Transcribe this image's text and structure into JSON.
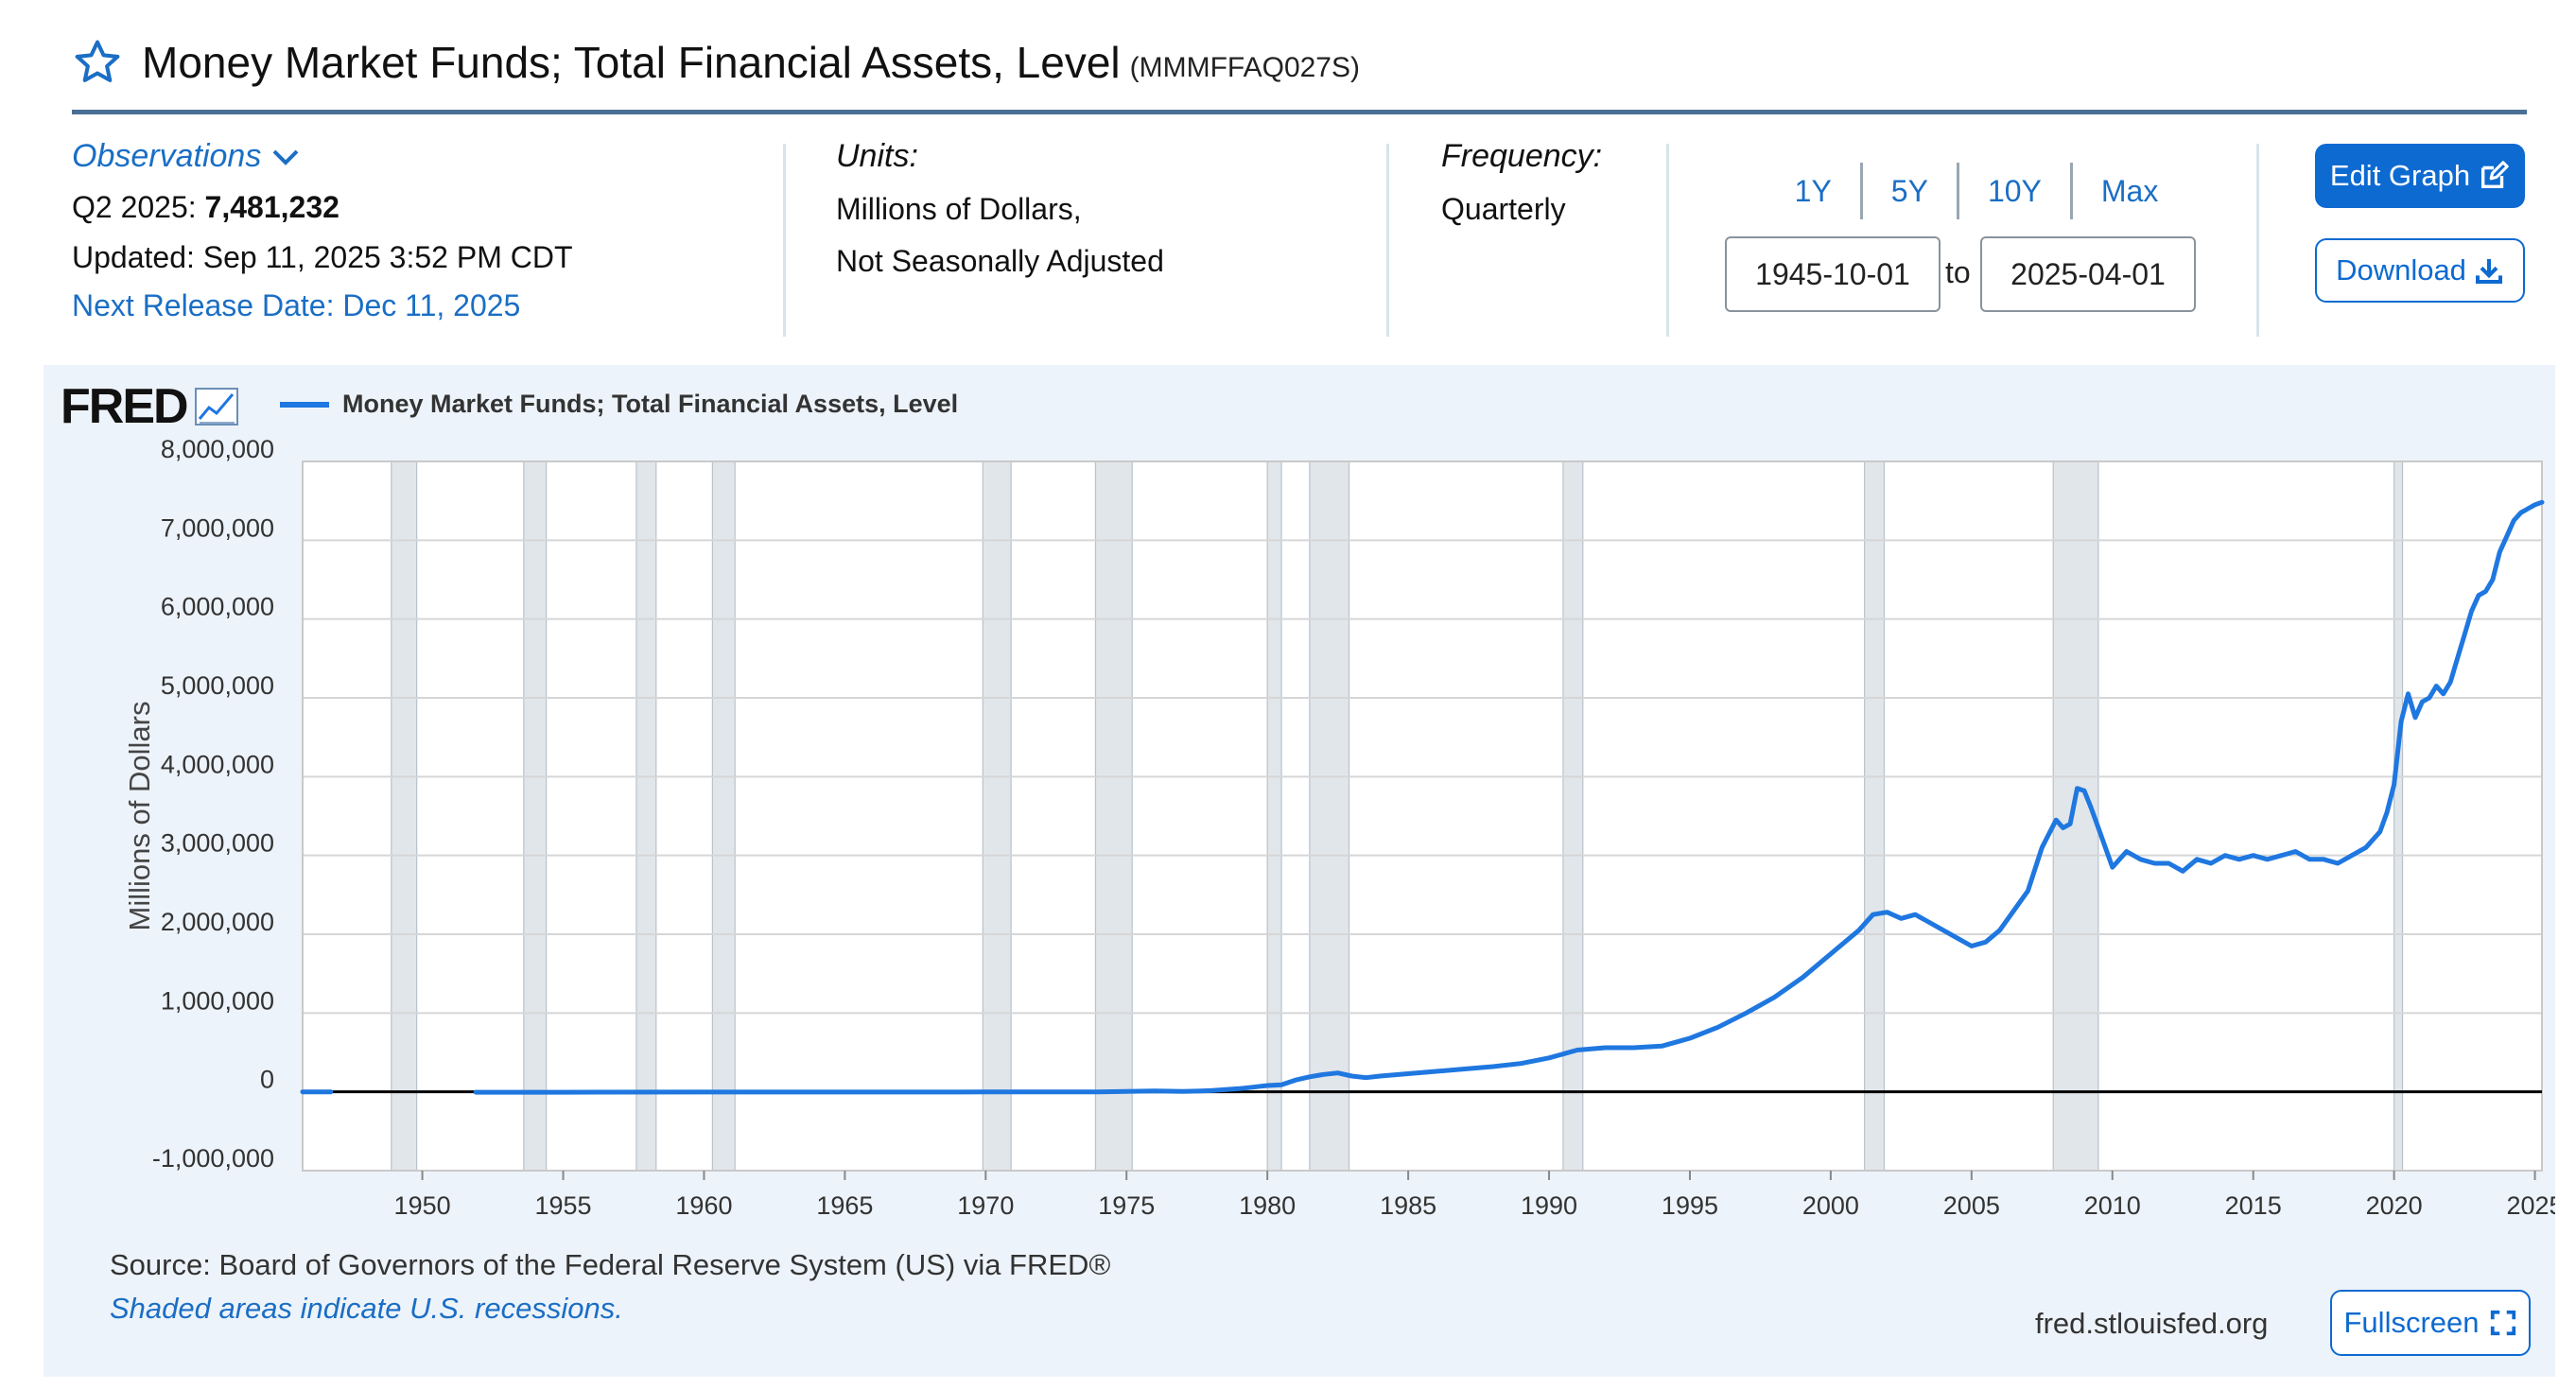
{
  "header": {
    "title": "Money Market Funds; Total Financial Assets, Level",
    "series_id": "(MMMFFAQ027S)"
  },
  "observations": {
    "label": "Observations",
    "period": "Q2 2025:",
    "value": "7,481,232",
    "updated": "Updated: Sep 11, 2025 3:52 PM CDT",
    "next_release": "Next Release Date: Dec 11, 2025"
  },
  "units": {
    "label": "Units:",
    "line1": "Millions of Dollars,",
    "line2": "Not Seasonally Adjusted"
  },
  "frequency": {
    "label": "Frequency:",
    "value": "Quarterly"
  },
  "range": {
    "buttons": [
      "1Y",
      "5Y",
      "10Y",
      "Max"
    ],
    "start": "1945-10-01",
    "to_label": "to",
    "end": "2025-04-01"
  },
  "actions": {
    "edit_label": "Edit Graph",
    "download_label": "Download",
    "fullscreen_label": "Fullscreen"
  },
  "footer": {
    "source": "Source: Board of Governors of the Federal Reserve System (US) via FRED®",
    "shaded_note": "Shaded areas indicate U.S. recessions.",
    "url": "fred.stlouisfed.org"
  },
  "logo": {
    "text": "FRED"
  },
  "colors": {
    "series": "#1f77e0",
    "accent": "#0d6ad1",
    "recession": "#e1e6eb",
    "panel_bg": "#edf3fa"
  },
  "chart_data": {
    "type": "line",
    "title": "Money Market Funds; Total Financial Assets, Level",
    "ylabel": "Millions of Dollars",
    "xlabel": "",
    "xlim": [
      1945.75,
      2025.25
    ],
    "ylim": [
      -1000000,
      8000000
    ],
    "y_ticks": [
      -1000000,
      0,
      1000000,
      2000000,
      3000000,
      4000000,
      5000000,
      6000000,
      7000000,
      8000000
    ],
    "y_tick_labels": [
      "-1,000,000",
      "0",
      "1,000,000",
      "2,000,000",
      "3,000,000",
      "4,000,000",
      "5,000,000",
      "6,000,000",
      "7,000,000",
      "8,000,000"
    ],
    "x_ticks": [
      1950,
      1955,
      1960,
      1965,
      1970,
      1975,
      1980,
      1985,
      1990,
      1995,
      2000,
      2005,
      2010,
      2015,
      2020,
      2025
    ],
    "grid": true,
    "legend": "top-left",
    "recessions": [
      [
        1948.9,
        1949.8
      ],
      [
        1953.6,
        1954.4
      ],
      [
        1957.6,
        1958.3
      ],
      [
        1960.3,
        1961.1
      ],
      [
        1969.9,
        1970.9
      ],
      [
        1973.9,
        1975.2
      ],
      [
        1980.0,
        1980.5
      ],
      [
        1981.5,
        1982.9
      ],
      [
        1990.5,
        1991.2
      ],
      [
        2001.2,
        2001.9
      ],
      [
        2007.9,
        2009.5
      ],
      [
        2020.0,
        2020.3
      ]
    ],
    "series": [
      {
        "name": "Money Market Funds; Total Financial Assets, Level",
        "segments": [
          {
            "x": [
              1945.75,
              1946.0,
              1946.5,
              1946.75
            ],
            "y": [
              0,
              0,
              0,
              0
            ]
          },
          {
            "x": [
              1951.9,
              1955,
              1960,
              1965,
              1970,
              1974,
              1975,
              1976,
              1977,
              1978,
              1979,
              1979.5,
              1980,
              1980.5,
              1981,
              1981.5,
              1982,
              1982.5,
              1983,
              1983.5,
              1984,
              1985,
              1986,
              1987,
              1988,
              1989,
              1990,
              1990.5,
              1991,
              1992,
              1993,
              1994,
              1995,
              1996,
              1997,
              1998,
              1999,
              1999.5,
              2000,
              2000.5,
              2001,
              2001.5,
              2002,
              2002.5,
              2003,
              2003.5,
              2004,
              2004.5,
              2005,
              2005.5,
              2006,
              2006.5,
              2007,
              2007.5,
              2008,
              2008.25,
              2008.5,
              2008.75,
              2009,
              2009.25,
              2009.5,
              2010,
              2010.5,
              2011,
              2011.5,
              2012,
              2012.5,
              2013,
              2013.5,
              2014,
              2014.5,
              2015,
              2015.5,
              2016,
              2016.5,
              2017,
              2017.5,
              2018,
              2018.5,
              2019,
              2019.5,
              2019.75,
              2020.0,
              2020.25,
              2020.5,
              2020.75,
              2021,
              2021.25,
              2021.5,
              2021.75,
              2022,
              2022.25,
              2022.5,
              2022.75,
              2023,
              2023.25,
              2023.5,
              2023.75,
              2024,
              2024.25,
              2024.5,
              2024.75,
              2025.0,
              2025.25
            ],
            "y": [
              -5000,
              -5000,
              -3000,
              -3000,
              -1000,
              0,
              5000,
              10000,
              5000,
              15000,
              40000,
              60000,
              80000,
              90000,
              150000,
              190000,
              220000,
              240000,
              200000,
              180000,
              200000,
              230000,
              260000,
              290000,
              320000,
              360000,
              430000,
              480000,
              530000,
              560000,
              560000,
              580000,
              680000,
              820000,
              1000000,
              1200000,
              1450000,
              1600000,
              1750000,
              1900000,
              2050000,
              2250000,
              2280000,
              2200000,
              2250000,
              2150000,
              2050000,
              1950000,
              1850000,
              1900000,
              2050000,
              2300000,
              2550000,
              3100000,
              3450000,
              3350000,
              3400000,
              3850000,
              3820000,
              3600000,
              3350000,
              2850000,
              3050000,
              2950000,
              2900000,
              2900000,
              2800000,
              2950000,
              2900000,
              3000000,
              2950000,
              3000000,
              2950000,
              3000000,
              3050000,
              2950000,
              2950000,
              2900000,
              3000000,
              3100000,
              3300000,
              3550000,
              3900000,
              4700000,
              5050000,
              4750000,
              4950000,
              5000000,
              5150000,
              5050000,
              5200000,
              5500000,
              5800000,
              6100000,
              6300000,
              6350000,
              6500000,
              6850000,
              7050000,
              7250000,
              7350000,
              7400000,
              7450000,
              7481232
            ]
          }
        ]
      }
    ]
  }
}
